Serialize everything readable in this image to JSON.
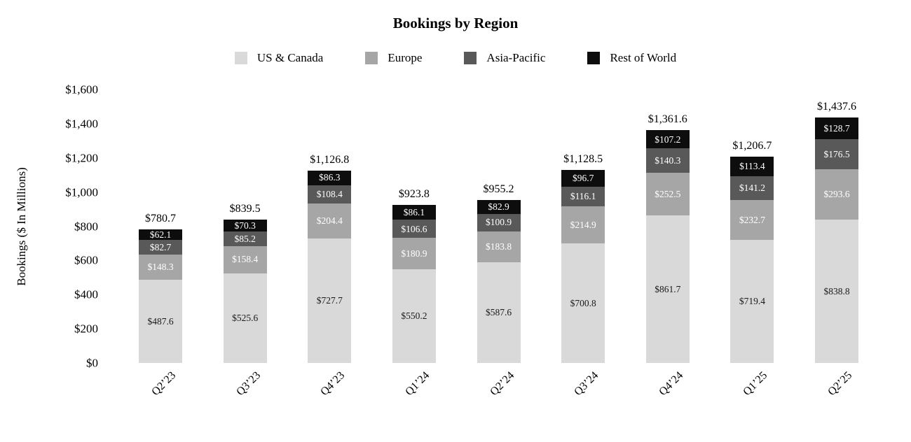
{
  "chart_data": {
    "type": "bar",
    "stacked": true,
    "title": "Bookings by Region",
    "ylabel": "Bookings ($ In Millions)",
    "ylim": [
      0,
      1600
    ],
    "ytick_step": 200,
    "ytick_prefix": "$",
    "grid": false,
    "legend_position": "top",
    "categories": [
      "Q2’23",
      "Q3’23",
      "Q4’23",
      "Q1’24",
      "Q2’24",
      "Q3’24",
      "Q4’24",
      "Q1’25",
      "Q2’25"
    ],
    "series": [
      {
        "name": "US & Canada",
        "color": "#d9d9d9",
        "label_color": "#1a1a1a",
        "values": [
          487.6,
          525.6,
          727.7,
          550.2,
          587.6,
          700.8,
          861.7,
          719.4,
          838.8
        ]
      },
      {
        "name": "Europe",
        "color": "#a6a6a6",
        "label_color": "#ffffff",
        "values": [
          148.3,
          158.4,
          204.4,
          180.9,
          183.8,
          214.9,
          252.5,
          232.7,
          293.6
        ]
      },
      {
        "name": "Asia-Pacific",
        "color": "#595959",
        "label_color": "#ffffff",
        "values": [
          82.7,
          85.2,
          108.4,
          106.6,
          100.9,
          116.1,
          140.3,
          141.2,
          176.5
        ]
      },
      {
        "name": "Rest of World",
        "color": "#0d0d0d",
        "label_color": "#ffffff",
        "values": [
          62.1,
          70.3,
          86.3,
          86.1,
          82.9,
          96.7,
          107.2,
          113.4,
          128.7
        ]
      }
    ],
    "totals": [
      "$780.7",
      "$839.5",
      "$1,126.8",
      "$923.8",
      "$955.2",
      "$1,128.5",
      "$1,361.6",
      "$1,206.7",
      "$1,437.6"
    ]
  }
}
